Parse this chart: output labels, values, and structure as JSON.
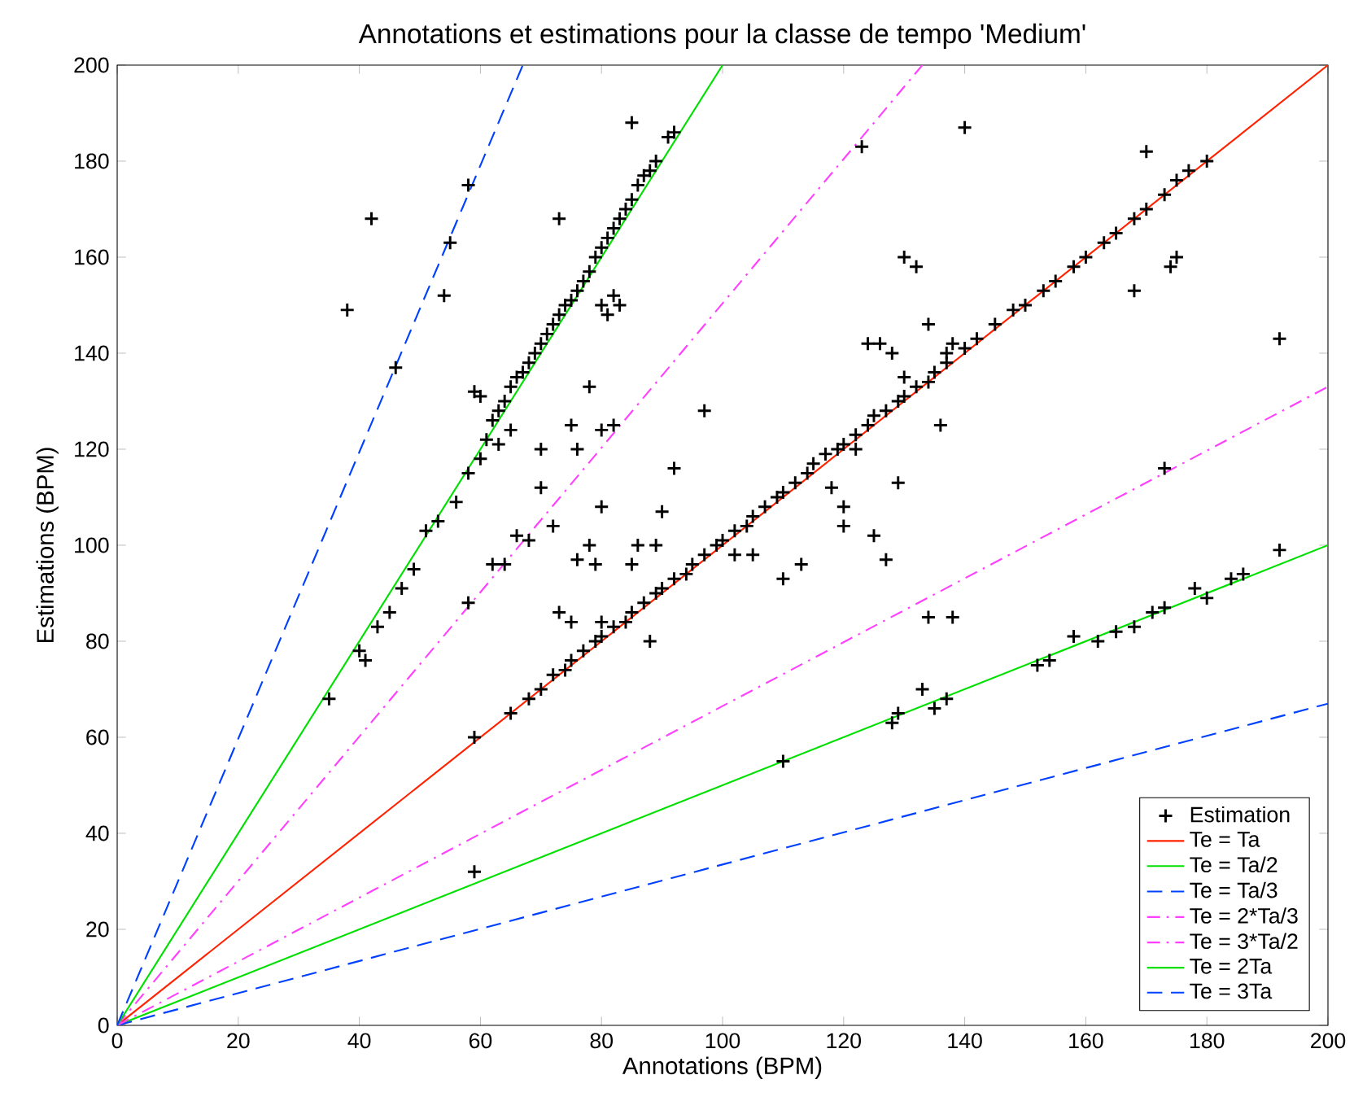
{
  "chart_data": {
    "type": "scatter",
    "title": "Annotations et estimations pour la classe de tempo 'Medium'",
    "xlabel": "Annotations (BPM)",
    "ylabel": "Estimations (BPM)",
    "xlim": [
      0,
      200
    ],
    "ylim": [
      0,
      200
    ],
    "xticks": [
      0,
      20,
      40,
      60,
      80,
      100,
      120,
      140,
      160,
      180,
      200
    ],
    "yticks": [
      0,
      20,
      40,
      60,
      80,
      100,
      120,
      140,
      160,
      180,
      200
    ],
    "legend": "bottom right",
    "series": [
      {
        "name": "Estimation",
        "color": "#000000",
        "marker": "cross",
        "x": [
          38,
          42,
          46,
          55,
          58,
          54,
          35,
          40,
          41,
          43,
          45,
          47,
          49,
          51,
          53,
          56,
          58,
          60,
          61,
          62,
          63,
          64,
          65,
          66,
          67,
          68,
          69,
          70,
          71,
          72,
          73,
          74,
          75,
          76,
          77,
          78,
          79,
          80,
          81,
          82,
          83,
          84,
          85,
          86,
          87,
          88,
          89,
          91,
          92,
          85,
          73,
          59,
          60,
          63,
          65,
          58,
          70,
          75,
          80,
          81,
          82,
          83,
          78,
          82,
          76,
          70,
          62,
          66,
          68,
          72,
          59,
          59,
          64,
          65,
          68,
          70,
          72,
          74,
          75,
          77,
          79,
          80,
          82,
          84,
          85,
          87,
          89,
          90,
          92,
          94,
          95,
          97,
          99,
          100,
          102,
          104,
          105,
          107,
          109,
          110,
          112,
          114,
          115,
          117,
          119,
          120,
          122,
          124,
          125,
          127,
          129,
          130,
          132,
          134,
          135,
          137,
          140,
          142,
          145,
          148,
          150,
          153,
          155,
          158,
          160,
          163,
          165,
          168,
          170,
          173,
          175,
          177,
          180,
          73,
          75,
          80,
          88,
          90,
          92,
          97,
          102,
          105,
          110,
          113,
          118,
          120,
          122,
          124,
          126,
          128,
          130,
          134,
          137,
          138,
          140,
          123,
          130,
          132,
          120,
          125,
          127,
          129,
          136,
          170,
          173,
          175,
          174,
          168,
          192,
          78,
          79,
          85,
          89,
          80,
          76,
          80,
          86,
          110,
          128,
          129,
          133,
          135,
          137,
          134,
          138,
          152,
          154,
          158,
          162,
          165,
          168,
          171,
          173,
          178,
          180,
          184,
          186,
          192
        ],
        "values": [
          149,
          168,
          137,
          163,
          175,
          152,
          68,
          78,
          76,
          83,
          86,
          91,
          95,
          103,
          105,
          109,
          115,
          118,
          122,
          126,
          128,
          130,
          133,
          135,
          136,
          138,
          140,
          142,
          144,
          146,
          148,
          150,
          151,
          153,
          155,
          157,
          160,
          162,
          164,
          166,
          168,
          170,
          172,
          175,
          177,
          178,
          180,
          185,
          186,
          188,
          168,
          132,
          131,
          121,
          124,
          88,
          120,
          125,
          150,
          148,
          152,
          150,
          133,
          125,
          120,
          112,
          96,
          102,
          101,
          104,
          60,
          32,
          96,
          65,
          68,
          70,
          73,
          74,
          76,
          78,
          80,
          81,
          83,
          84,
          86,
          88,
          90,
          91,
          93,
          94,
          96,
          98,
          100,
          101,
          103,
          104,
          106,
          108,
          110,
          111,
          113,
          115,
          117,
          119,
          120,
          121,
          123,
          125,
          127,
          128,
          130,
          131,
          133,
          134,
          136,
          138,
          141,
          143,
          146,
          149,
          150,
          153,
          155,
          158,
          160,
          163,
          165,
          168,
          170,
          173,
          176,
          178,
          180,
          86,
          84,
          84,
          80,
          107,
          116,
          128,
          98,
          98,
          93,
          96,
          112,
          108,
          120,
          142,
          142,
          140,
          135,
          146,
          140,
          142,
          187,
          183,
          160,
          158,
          104,
          102,
          97,
          113,
          125,
          182,
          116,
          160,
          158,
          153,
          143,
          100,
          96,
          96,
          100,
          124,
          97,
          108,
          100,
          55,
          63,
          65,
          70,
          66,
          68,
          85,
          85,
          75,
          76,
          81,
          80,
          82,
          83,
          86,
          87,
          91,
          89,
          93,
          94,
          99
        ]
      },
      {
        "name": "Te = Ta",
        "type": "line",
        "color": "#ff2200",
        "line_style": "solid",
        "x": [
          0,
          200
        ],
        "values": [
          0,
          200
        ]
      },
      {
        "name": "Te = Ta/2",
        "type": "line",
        "color": "#00e000",
        "line_style": "solid",
        "x": [
          0,
          200
        ],
        "values": [
          0,
          100
        ]
      },
      {
        "name": "Te = Ta/3",
        "type": "line",
        "color": "#0040ff",
        "line_style": "dashed",
        "x": [
          0,
          200
        ],
        "values": [
          0,
          67
        ]
      },
      {
        "name": "Te = 2*Ta/3",
        "type": "line",
        "color": "#ff40ff",
        "line_style": "dashdot",
        "x": [
          0,
          200
        ],
        "values": [
          0,
          133
        ]
      },
      {
        "name": "Te = 3*Ta/2",
        "type": "line",
        "color": "#ff40ff",
        "line_style": "dashdot",
        "x": [
          0,
          133
        ],
        "values": [
          0,
          200
        ]
      },
      {
        "name": "Te = 2Ta",
        "type": "line",
        "color": "#00e000",
        "line_style": "solid",
        "x": [
          0,
          100
        ],
        "values": [
          0,
          200
        ]
      },
      {
        "name": "Te = 3Ta",
        "type": "line",
        "color": "#0040ff",
        "line_style": "dashed",
        "x": [
          0,
          67
        ],
        "values": [
          0,
          200
        ]
      }
    ]
  }
}
